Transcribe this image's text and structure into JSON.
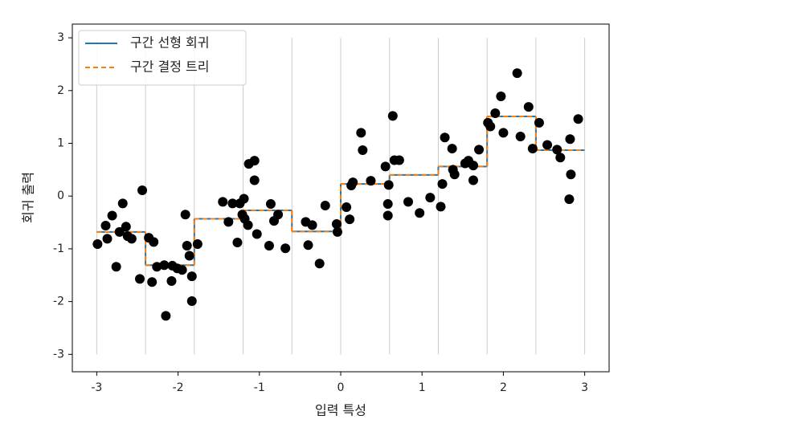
{
  "chart_data": {
    "type": "scatter",
    "x_label": "입력 특성",
    "y_label": "회귀 출력",
    "xlim": [
      -3.3,
      3.3
    ],
    "ylim": [
      -3.33,
      3.26
    ],
    "xticks": [
      -3,
      -2,
      -1,
      0,
      1,
      2,
      3
    ],
    "yticks": [
      -3,
      -2,
      -1,
      0,
      1,
      2,
      3
    ],
    "legend": "upper left",
    "vlines": {
      "x": [
        -3,
        -2.4,
        -1.8,
        -1.2,
        -0.6,
        0,
        0.6,
        1.2,
        1.8,
        2.4,
        3
      ],
      "ymin": -3,
      "ymax": 3,
      "color": "#cccccc"
    },
    "series": [
      {
        "name": "구간 선형 회귀",
        "color": "#1f77b4",
        "style": "solid",
        "bins": [
          -3,
          -2.4,
          -1.8,
          -1.2,
          -0.6,
          0,
          0.6,
          1.2,
          1.8,
          2.4,
          3
        ],
        "values": [
          -0.68,
          -1.31,
          -0.43,
          -0.27,
          -0.67,
          0.23,
          0.4,
          0.56,
          1.51,
          0.87
        ]
      },
      {
        "name": "구간 결정 트리",
        "color": "#ff7f0e",
        "style": "dashed",
        "bins": [
          -3,
          -2.4,
          -1.8,
          -1.2,
          -0.6,
          0,
          0.6,
          1.2,
          1.8,
          2.4,
          3
        ],
        "values": [
          -0.68,
          -1.31,
          -0.43,
          -0.27,
          -0.67,
          0.23,
          0.4,
          0.56,
          1.51,
          0.87
        ]
      }
    ],
    "scatter": {
      "color": "#000000",
      "x": [
        -2.99,
        -2.89,
        -2.87,
        -2.81,
        -2.76,
        -2.72,
        -2.68,
        -2.64,
        -2.62,
        -2.57,
        -2.44,
        -2.47,
        -2.36,
        -2.32,
        -2.3,
        -2.26,
        -2.17,
        -2.15,
        -2.08,
        -2.07,
        -2.01,
        -1.95,
        -1.91,
        -1.89,
        -1.86,
        -1.83,
        -1.83,
        -1.76,
        -1.45,
        -1.38,
        -1.33,
        -1.27,
        -1.24,
        -1.21,
        -1.19,
        -1.18,
        -1.14,
        -1.13,
        -1.06,
        -1.06,
        -1.03,
        -0.88,
        -0.86,
        -0.82,
        -0.77,
        -0.68,
        -0.43,
        -0.4,
        -0.35,
        -0.26,
        -0.19,
        -0.05,
        -0.04,
        0.07,
        0.11,
        0.13,
        0.15,
        0.25,
        0.27,
        0.37,
        0.55,
        0.58,
        0.58,
        0.59,
        0.64,
        0.66,
        0.72,
        0.83,
        0.97,
        1.1,
        1.23,
        1.25,
        1.28,
        1.37,
        1.38,
        1.4,
        1.53,
        1.57,
        1.63,
        1.63,
        1.7,
        1.81,
        1.84,
        1.9,
        1.97,
        2.0,
        2.17,
        2.21,
        2.31,
        2.36,
        2.44,
        2.54,
        2.66,
        2.7,
        2.81,
        2.82,
        2.83,
        2.92
      ],
      "values": [
        -0.91,
        -0.56,
        -0.81,
        -0.37,
        -1.34,
        -0.68,
        -0.14,
        -0.58,
        -0.76,
        -0.81,
        0.11,
        -1.57,
        -0.79,
        -1.63,
        -0.87,
        -1.34,
        -1.31,
        -2.27,
        -1.61,
        -1.32,
        -1.37,
        -1.4,
        -0.35,
        -0.94,
        -1.13,
        -1.52,
        -1.99,
        -0.91,
        -0.11,
        -0.49,
        -0.14,
        -0.88,
        -0.14,
        -0.35,
        -0.05,
        -0.43,
        -0.55,
        0.61,
        0.67,
        0.3,
        -0.72,
        -0.94,
        -0.15,
        -0.47,
        -0.35,
        -0.99,
        -0.49,
        -0.93,
        -0.55,
        -1.28,
        -0.18,
        -0.53,
        -0.68,
        -0.21,
        -0.44,
        0.2,
        0.26,
        1.2,
        0.87,
        0.29,
        0.56,
        -0.15,
        -0.37,
        0.21,
        1.52,
        0.68,
        0.68,
        -0.11,
        -0.32,
        -0.03,
        -0.2,
        0.23,
        1.11,
        0.9,
        0.5,
        0.41,
        0.62,
        0.67,
        0.58,
        0.3,
        0.88,
        1.39,
        1.32,
        1.57,
        1.89,
        1.2,
        2.33,
        1.13,
        1.69,
        0.9,
        1.39,
        0.97,
        0.88,
        0.73,
        -0.06,
        1.08,
        0.41,
        1.46
      ]
    }
  }
}
